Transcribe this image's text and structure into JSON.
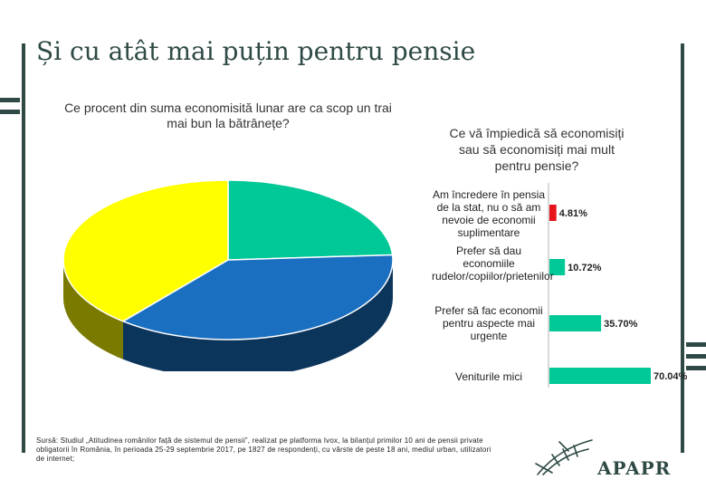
{
  "slide": {
    "title": "Și cu atât mai puțin pentru pensie",
    "source": "Sursă: Studiul „Atitudinea românilor față de sistemul de pensii”, realizat pe platforma Ivox, la bilanțul primilor 10 ani de pensii private obligatorii în România, în perioada 25-29 septembrie 2017, pe 1827 de respondenți, cu vârste de peste 18 ani, mediul urban, utilizatori de internet;",
    "logo": "APAPR"
  },
  "chart_data": [
    {
      "type": "pie",
      "title": "Ce procent din suma economisită lunar are ca scop un trai mai bun la bătrânețe?",
      "slices": [
        {
          "color": "#00c896",
          "value": 24
        },
        {
          "color": "#1a6fc0",
          "value": 37
        },
        {
          "color": "#ffff00",
          "value": 39
        }
      ],
      "note": "Slice labels and values not shown in the image; values estimated from slice angles."
    },
    {
      "type": "bar",
      "orientation": "horizontal",
      "title": "Ce vă împiedică să economisiți sau să economisiți mai mult pentru pensie?",
      "categories": [
        "Am încredere în pensia de la stat, nu o să am nevoie de economii suplimentare",
        "Prefer să dau economiile rudelor/copiilor/prietenilor",
        "Prefer să fac economii pentru aspecte mai urgente",
        "Veniturile mici"
      ],
      "values": [
        4.81,
        10.72,
        35.7,
        70.04
      ],
      "labels": [
        "4.81%",
        "10.72%",
        "35.70%",
        "70.04%"
      ],
      "colors": [
        "#e8141c",
        "#00c896",
        "#00c896",
        "#00c896"
      ],
      "xlim": [
        0,
        70.04
      ]
    }
  ]
}
